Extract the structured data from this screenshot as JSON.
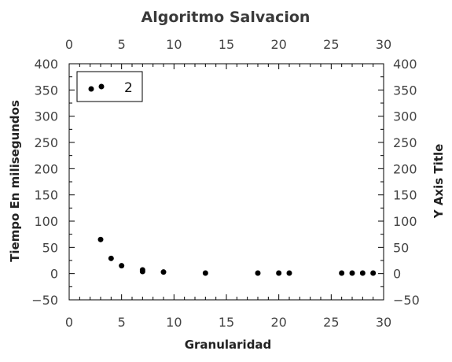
{
  "chart_data": {
    "type": "scatter",
    "title": "Algoritmo Salvacion",
    "xlabel": "Granularidad",
    "ylabel": "Tiempo En milisegundos",
    "y2label": "Y Axis Title",
    "xlim": [
      0,
      30
    ],
    "ylim": [
      -50,
      400
    ],
    "x_ticks": [
      0,
      5,
      10,
      15,
      20,
      25,
      30
    ],
    "y_ticks": [
      -50,
      0,
      50,
      100,
      150,
      200,
      250,
      300,
      350,
      400
    ],
    "x_tick_labels": [
      "0",
      "5",
      "10",
      "15",
      "20",
      "25",
      "30"
    ],
    "y_tick_labels": [
      "−50",
      "0",
      "50",
      "100",
      "150",
      "200",
      "250",
      "300",
      "350",
      "400"
    ],
    "grid": false,
    "legend_position": "top-left",
    "marker_color": "#000000",
    "series": [
      {
        "name": "2",
        "x": [
          3,
          4,
          5,
          7,
          7,
          9,
          13,
          18,
          20,
          21,
          26,
          27,
          28,
          29
        ],
        "y": [
          65,
          29,
          15,
          7,
          4,
          3,
          1,
          1,
          1,
          1,
          1,
          1,
          1,
          1
        ]
      }
    ]
  }
}
